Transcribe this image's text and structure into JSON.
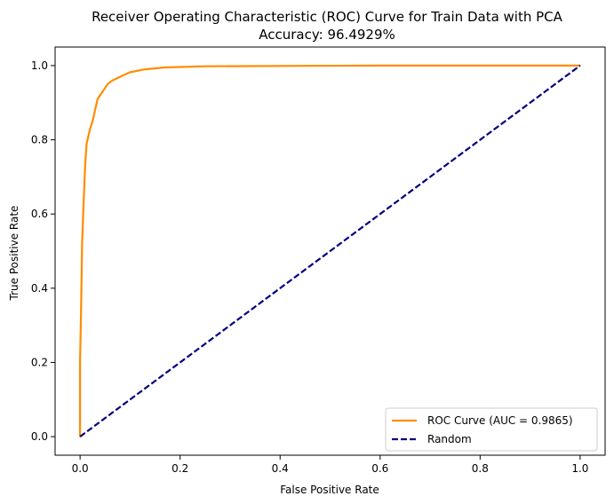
{
  "chart_data": {
    "type": "line",
    "title": "Receiver Operating Characteristic (ROC) Curve for Train Data with PCA",
    "subtitle": "Accuracy: 96.4929%",
    "xlabel": "False Positive Rate",
    "ylabel": "True Positive Rate",
    "xlim": [
      -0.05,
      1.05
    ],
    "ylim": [
      -0.05,
      1.05
    ],
    "xticks": [
      "0.0",
      "0.2",
      "0.4",
      "0.6",
      "0.8",
      "1.0"
    ],
    "yticks": [
      "0.0",
      "0.2",
      "0.4",
      "0.6",
      "0.8",
      "1.0"
    ],
    "grid": false,
    "legend_position": "lower right",
    "series": [
      {
        "name": "ROC Curve (AUC = 0.9865)",
        "color": "#ff8c00",
        "style": "solid",
        "points": [
          [
            0.0,
            0.0
          ],
          [
            0.0,
            0.2
          ],
          [
            0.002,
            0.35
          ],
          [
            0.004,
            0.52
          ],
          [
            0.007,
            0.63
          ],
          [
            0.01,
            0.73
          ],
          [
            0.013,
            0.79
          ],
          [
            0.02,
            0.83
          ],
          [
            0.025,
            0.85
          ],
          [
            0.03,
            0.88
          ],
          [
            0.035,
            0.91
          ],
          [
            0.045,
            0.93
          ],
          [
            0.055,
            0.95
          ],
          [
            0.065,
            0.96
          ],
          [
            0.08,
            0.97
          ],
          [
            0.1,
            0.982
          ],
          [
            0.13,
            0.99
          ],
          [
            0.17,
            0.995
          ],
          [
            0.25,
            0.998
          ],
          [
            0.4,
            0.999
          ],
          [
            0.6,
            1.0
          ],
          [
            1.0,
            1.0
          ]
        ]
      },
      {
        "name": "Random",
        "color": "#000080",
        "style": "dashed",
        "points": [
          [
            0.0,
            0.0
          ],
          [
            1.0,
            1.0
          ]
        ]
      }
    ]
  }
}
